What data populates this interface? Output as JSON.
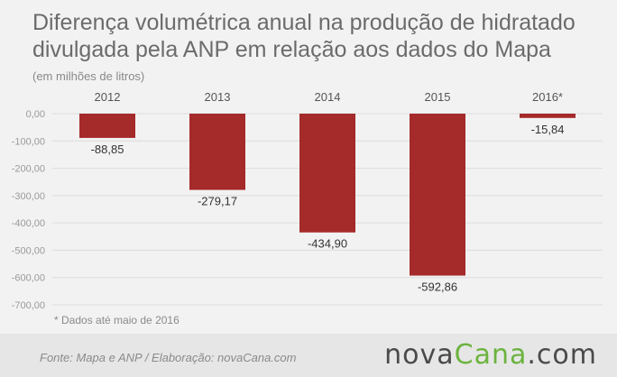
{
  "title": "Diferença volumétrica anual na produção de hidratado divulgada pela ANP em relação aos dados do Mapa",
  "subtitle": "(em milhões de litros)",
  "footnote": "* Dados até maio de 2016",
  "footer": {
    "source": "Fonte: Mapa e ANP / Elaboração: novaCana.com",
    "brand_part1": "nova",
    "brand_part2": "Cana",
    "brand_part3": ".com"
  },
  "colors": {
    "bar": "#a52a2a",
    "background": "#f2f2f2",
    "brand_green": "#6cb33f"
  },
  "chart_data": {
    "type": "bar",
    "categories": [
      "2012",
      "2013",
      "2014",
      "2015",
      "2016*"
    ],
    "values": [
      -88.85,
      -279.17,
      -434.9,
      -592.86,
      -15.84
    ],
    "value_labels": [
      "-88,85",
      "-279,17",
      "-434,90",
      "-592,86",
      "-15,84"
    ],
    "y_ticks": [
      0,
      -100,
      -200,
      -300,
      -400,
      -500,
      -600,
      -700
    ],
    "y_tick_labels": [
      "0,00",
      "-100,00",
      "-200,00",
      "-300,00",
      "-400,00",
      "-500,00",
      "-600,00",
      "-700,00"
    ],
    "ylim": [
      -700,
      0
    ],
    "grid": true,
    "legend": "none"
  }
}
